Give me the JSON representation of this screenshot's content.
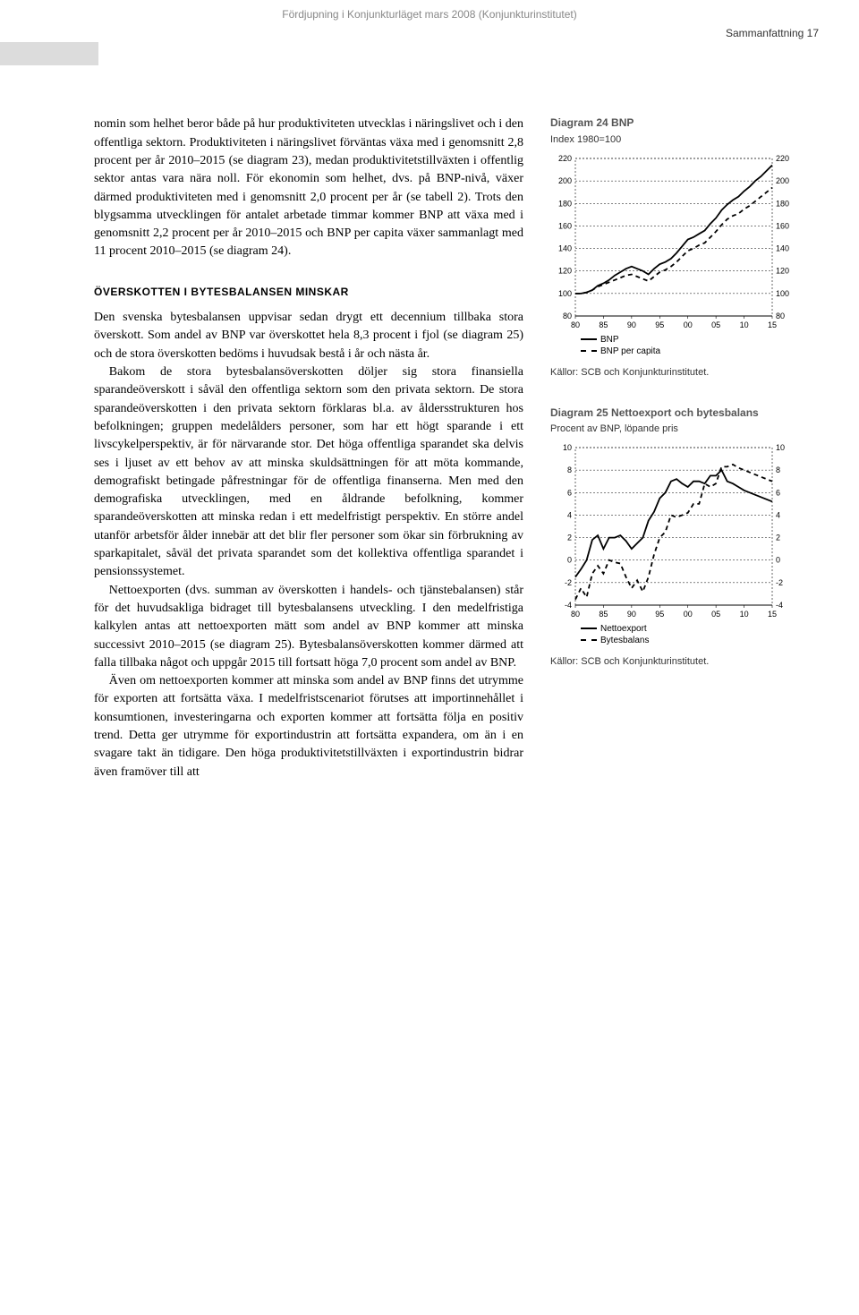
{
  "header": {
    "breadcrumb": "Fördjupning i Konjunkturläget mars 2008 (Konjunkturinstitutet)",
    "section_label": "Sammanfattning   17"
  },
  "body": {
    "para1": "nomin som helhet beror både på hur produktiviteten utvecklas i näringslivet och i den offentliga sektorn. Produktiviteten i näringslivet förväntas växa med i genomsnitt 2,8 procent per år 2010–2015 (se diagram 23), medan produktivitetstillväxten i offentlig sektor antas vara nära noll. För ekonomin som helhet, dvs. på BNP-nivå, växer därmed produktiviteten med i genomsnitt 2,0 procent per år (se tabell 2). Trots den blygsamma utvecklingen för antalet arbetade timmar kommer BNP att växa med i genomsnitt 2,2 procent per år 2010–2015 och BNP per capita växer sammanlagt med 11 procent 2010–2015 (se diagram 24).",
    "subhead1": "ÖVERSKOTTEN I BYTESBALANSEN MINSKAR",
    "para2": "Den svenska bytesbalansen uppvisar sedan drygt ett decennium tillbaka stora överskott. Som andel av BNP var överskottet hela 8,3 procent i fjol (se diagram 25) och de stora överskotten bedöms i huvudsak bestå i år och nästa år.",
    "para3": "Bakom de stora bytesbalansöverskotten döljer sig stora finansiella sparandeöverskott i såväl den offentliga sektorn som den privata sektorn. De stora sparandeöverskotten i den privata sektorn förklaras bl.a. av åldersstrukturen hos befolkningen; gruppen medelålders personer, som har ett högt sparande i ett livscykelperspektiv, är för närvarande stor. Det höga offentliga sparandet ska delvis ses i ljuset av ett behov av att minska skuldsättningen för att möta kommande, demografiskt betingade påfrestningar för de offentliga finanserna. Men med den demografiska utvecklingen, med en åldrande befolkning, kommer sparandeöverskotten att minska redan i ett medelfristigt perspektiv. En större andel utanför arbetsför ålder innebär att det blir fler personer som ökar sin förbrukning av sparkapitalet, såväl det privata sparandet som det kollektiva offentliga sparandet i pensionssystemet.",
    "para4": "Nettoexporten (dvs. summan av överskotten i handels- och tjänstebalansen) står för det huvudsakliga bidraget till bytesbalansens utveckling. I den medelfristiga kalkylen antas att nettoexporten mätt som andel av BNP kommer att minska successivt 2010–2015 (se diagram 25). Bytesbalansöverskotten kommer därmed att falla tillbaka något och uppgår 2015 till fortsatt höga 7,0 procent som andel av BNP.",
    "para5": "Även om nettoexporten kommer att minska som andel av BNP finns det utrymme för exporten att fortsätta växa. I medelfristscenariot förutses att importinnehållet i konsumtionen, investeringarna och exporten kommer att fortsätta följa en positiv trend. Detta ger utrymme för exportindustrin att fortsätta expandera, om än i en svagare takt än tidigare. Den höga produktivitetstillväxten i exportindustrin bidrar även framöver till att"
  },
  "chart24": {
    "type": "line",
    "title": "Diagram 24 BNP",
    "subtitle": "Index 1980=100",
    "x_range": [
      80,
      15
    ],
    "x_ticks": [
      "80",
      "85",
      "90",
      "95",
      "00",
      "05",
      "10",
      "15"
    ],
    "y_range": [
      80,
      220
    ],
    "y_ticks": [
      80,
      100,
      120,
      140,
      160,
      180,
      200,
      220
    ],
    "colors": {
      "axis": "#000000",
      "grid": "#000000",
      "bnp": "#000000",
      "bnp_pc": "#000000",
      "background": "#ffffff"
    },
    "line_width": 1.8,
    "series": [
      {
        "name": "BNP",
        "dashed": false,
        "points": [
          [
            0,
            100
          ],
          [
            1,
            100
          ],
          [
            2,
            101
          ],
          [
            3,
            103
          ],
          [
            4,
            107
          ],
          [
            5,
            109
          ],
          [
            6,
            112
          ],
          [
            7,
            116
          ],
          [
            8,
            119
          ],
          [
            9,
            122
          ],
          [
            10,
            124
          ],
          [
            11,
            122
          ],
          [
            12,
            120
          ],
          [
            13,
            117
          ],
          [
            14,
            122
          ],
          [
            15,
            126
          ],
          [
            16,
            128
          ],
          [
            17,
            131
          ],
          [
            18,
            136
          ],
          [
            19,
            142
          ],
          [
            20,
            148
          ],
          [
            21,
            150
          ],
          [
            22,
            153
          ],
          [
            23,
            156
          ],
          [
            24,
            162
          ],
          [
            25,
            167
          ],
          [
            26,
            174
          ],
          [
            27,
            179
          ],
          [
            28,
            183
          ],
          [
            29,
            186
          ],
          [
            30,
            191
          ],
          [
            31,
            195
          ],
          [
            32,
            200
          ],
          [
            33,
            204
          ],
          [
            34,
            209
          ],
          [
            35,
            214
          ]
        ]
      },
      {
        "name": "BNP per capita",
        "dashed": true,
        "points": [
          [
            0,
            100
          ],
          [
            1,
            100
          ],
          [
            2,
            101
          ],
          [
            3,
            103
          ],
          [
            4,
            106
          ],
          [
            5,
            108
          ],
          [
            6,
            110
          ],
          [
            7,
            112
          ],
          [
            8,
            114
          ],
          [
            9,
            116
          ],
          [
            10,
            117
          ],
          [
            11,
            115
          ],
          [
            12,
            113
          ],
          [
            13,
            111
          ],
          [
            14,
            115
          ],
          [
            15,
            119
          ],
          [
            16,
            121
          ],
          [
            17,
            124
          ],
          [
            18,
            128
          ],
          [
            19,
            133
          ],
          [
            20,
            138
          ],
          [
            21,
            140
          ],
          [
            22,
            143
          ],
          [
            23,
            145
          ],
          [
            24,
            150
          ],
          [
            25,
            155
          ],
          [
            26,
            161
          ],
          [
            27,
            166
          ],
          [
            28,
            169
          ],
          [
            29,
            171
          ],
          [
            30,
            175
          ],
          [
            31,
            178
          ],
          [
            32,
            182
          ],
          [
            33,
            186
          ],
          [
            34,
            190
          ],
          [
            35,
            194
          ]
        ]
      }
    ],
    "legend": [
      "BNP",
      "BNP per capita"
    ],
    "source": "Källor: SCB och Konjunkturinstitutet."
  },
  "chart25": {
    "type": "line",
    "title": "Diagram 25 Nettoexport och bytesbalans",
    "subtitle": "Procent av BNP, löpande pris",
    "x_ticks": [
      "80",
      "85",
      "90",
      "95",
      "00",
      "05",
      "10",
      "15"
    ],
    "y_range": [
      -4,
      10
    ],
    "y_ticks": [
      -4,
      -2,
      0,
      2,
      4,
      6,
      8,
      10
    ],
    "colors": {
      "axis": "#000000",
      "grid": "#000000",
      "netto": "#000000",
      "bytes": "#000000",
      "background": "#ffffff"
    },
    "line_width": 1.8,
    "series": [
      {
        "name": "Nettoexport",
        "dashed": false,
        "points": [
          [
            0,
            -1.5
          ],
          [
            1,
            -0.8
          ],
          [
            2,
            0.0
          ],
          [
            3,
            1.8
          ],
          [
            4,
            2.2
          ],
          [
            5,
            1.0
          ],
          [
            6,
            2.0
          ],
          [
            7,
            2.0
          ],
          [
            8,
            2.2
          ],
          [
            9,
            1.7
          ],
          [
            10,
            1.0
          ],
          [
            11,
            1.5
          ],
          [
            12,
            2.0
          ],
          [
            13,
            3.5
          ],
          [
            14,
            4.3
          ],
          [
            15,
            5.5
          ],
          [
            16,
            6.0
          ],
          [
            17,
            7.0
          ],
          [
            18,
            7.2
          ],
          [
            19,
            6.8
          ],
          [
            20,
            6.5
          ],
          [
            21,
            7.0
          ],
          [
            22,
            7.0
          ],
          [
            23,
            6.8
          ],
          [
            24,
            7.5
          ],
          [
            25,
            7.5
          ],
          [
            26,
            8.0
          ],
          [
            27,
            7.0
          ],
          [
            28,
            6.8
          ],
          [
            29,
            6.5
          ],
          [
            30,
            6.2
          ],
          [
            31,
            6.0
          ],
          [
            32,
            5.8
          ],
          [
            33,
            5.6
          ],
          [
            34,
            5.4
          ],
          [
            35,
            5.2
          ]
        ]
      },
      {
        "name": "Bytesbalans",
        "dashed": true,
        "points": [
          [
            0,
            -3.5
          ],
          [
            1,
            -2.5
          ],
          [
            2,
            -3.3
          ],
          [
            3,
            -1.2
          ],
          [
            4,
            -0.5
          ],
          [
            5,
            -1.2
          ],
          [
            6,
            0.0
          ],
          [
            7,
            -0.2
          ],
          [
            8,
            -0.3
          ],
          [
            9,
            -1.5
          ],
          [
            10,
            -2.5
          ],
          [
            11,
            -1.8
          ],
          [
            12,
            -2.8
          ],
          [
            13,
            -1.5
          ],
          [
            14,
            0.5
          ],
          [
            15,
            2.0
          ],
          [
            16,
            2.5
          ],
          [
            17,
            4.0
          ],
          [
            18,
            3.8
          ],
          [
            19,
            4.0
          ],
          [
            20,
            4.2
          ],
          [
            21,
            5.0
          ],
          [
            22,
            5.0
          ],
          [
            23,
            6.8
          ],
          [
            24,
            6.5
          ],
          [
            25,
            6.8
          ],
          [
            26,
            8.3
          ],
          [
            27,
            8.3
          ],
          [
            28,
            8.5
          ],
          [
            29,
            8.2
          ],
          [
            30,
            8.0
          ],
          [
            31,
            7.8
          ],
          [
            32,
            7.6
          ],
          [
            33,
            7.4
          ],
          [
            34,
            7.2
          ],
          [
            35,
            7.0
          ]
        ]
      }
    ],
    "legend": [
      "Nettoexport",
      "Bytesbalans"
    ],
    "source": "Källor: SCB och Konjunkturinstitutet."
  }
}
